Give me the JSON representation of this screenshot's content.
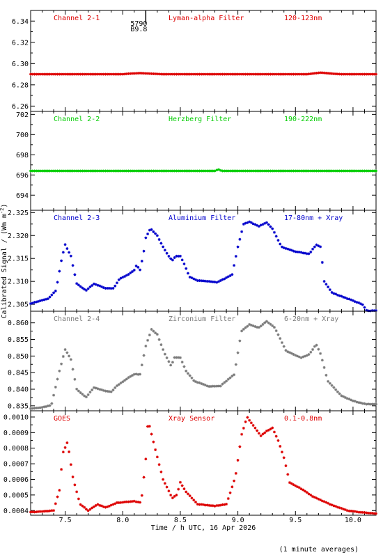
{
  "figure": {
    "ylabel": "Calibrated Signal / (Wm m",
    "ylabel_sup": "-2",
    "ylabel_close": ")",
    "xlabel": "Time / h UTC, 16 Apr 2026",
    "footnote": "(1 minute averages)",
    "marker_text_1": "5790",
    "marker_text_2": "B9.8",
    "marker_time": 8.2,
    "xlim": [
      7.2,
      10.2
    ],
    "xticks": [
      7.5,
      8.0,
      8.5,
      9.0,
      9.5,
      10.0
    ],
    "xtick_labels": [
      "7.5",
      "8.0",
      "8.5",
      "9.0",
      "9.5",
      "10.0"
    ]
  },
  "chart_data": [
    {
      "type": "scatter",
      "channel": "Channel 2-1",
      "filter": "Lyman-alpha Filter",
      "band": "120-123nm",
      "color": "#dd0000",
      "ylim": [
        6.255,
        6.35
      ],
      "yticks": [
        6.26,
        6.28,
        6.3,
        6.32,
        6.34
      ],
      "ytick_labels": [
        "6.26",
        "6.28",
        "6.30",
        "6.32",
        "6.34"
      ],
      "knots": [
        [
          7.2,
          6.29
        ],
        [
          8.0,
          6.29
        ],
        [
          8.05,
          6.2905
        ],
        [
          8.15,
          6.291
        ],
        [
          8.25,
          6.2905
        ],
        [
          8.35,
          6.29
        ],
        [
          9.6,
          6.29
        ],
        [
          9.72,
          6.2915
        ],
        [
          9.82,
          6.2905
        ],
        [
          9.9,
          6.29
        ],
        [
          10.2,
          6.29
        ]
      ]
    },
    {
      "type": "scatter",
      "channel": "Channel 2-2",
      "filter": "Herzberg Filter",
      "band": "190-222nm",
      "color": "#00cc00",
      "ylim": [
        692.5,
        702.3
      ],
      "yticks": [
        694,
        696,
        698,
        700,
        702
      ],
      "ytick_labels": [
        "694",
        "696",
        "698",
        "700",
        "702"
      ],
      "knots": [
        [
          7.2,
          696.4
        ],
        [
          8.8,
          696.4
        ],
        [
          8.83,
          696.55
        ],
        [
          8.86,
          696.4
        ],
        [
          10.2,
          696.4
        ]
      ]
    },
    {
      "type": "scatter",
      "channel": "Channel 2-3",
      "filter": "Aluminium Filter",
      "band": "17-80nm + Xray",
      "color": "#0000cc",
      "ylim": [
        2.3035,
        2.3255
      ],
      "yticks": [
        2.305,
        2.31,
        2.315,
        2.32,
        2.325
      ],
      "ytick_labels": [
        "2.305",
        "2.310",
        "2.315",
        "2.320",
        "2.325"
      ],
      "knots": [
        [
          7.2,
          2.3052
        ],
        [
          7.35,
          2.3062
        ],
        [
          7.42,
          2.308
        ],
        [
          7.47,
          2.315
        ],
        [
          7.5,
          2.318
        ],
        [
          7.55,
          2.3155
        ],
        [
          7.6,
          2.3095
        ],
        [
          7.68,
          2.308
        ],
        [
          7.75,
          2.3095
        ],
        [
          7.85,
          2.3085
        ],
        [
          7.92,
          2.3085
        ],
        [
          7.97,
          2.3105
        ],
        [
          8.05,
          2.3115
        ],
        [
          8.1,
          2.3125
        ],
        [
          8.12,
          2.3135
        ],
        [
          8.15,
          2.3125
        ],
        [
          8.18,
          2.316
        ],
        [
          8.2,
          2.3195
        ],
        [
          8.24,
          2.3215
        ],
        [
          8.3,
          2.32
        ],
        [
          8.35,
          2.3175
        ],
        [
          8.4,
          2.3155
        ],
        [
          8.43,
          2.3145
        ],
        [
          8.46,
          2.3155
        ],
        [
          8.5,
          2.3155
        ],
        [
          8.53,
          2.314
        ],
        [
          8.58,
          2.311
        ],
        [
          8.65,
          2.3102
        ],
        [
          8.75,
          2.31
        ],
        [
          8.82,
          2.3098
        ],
        [
          8.9,
          2.3108
        ],
        [
          8.95,
          2.3115
        ],
        [
          9.0,
          2.3175
        ],
        [
          9.05,
          2.3225
        ],
        [
          9.1,
          2.323
        ],
        [
          9.18,
          2.322
        ],
        [
          9.25,
          2.3228
        ],
        [
          9.3,
          2.3215
        ],
        [
          9.38,
          2.3175
        ],
        [
          9.5,
          2.3165
        ],
        [
          9.62,
          2.316
        ],
        [
          9.68,
          2.318
        ],
        [
          9.72,
          2.3175
        ],
        [
          9.75,
          2.31
        ],
        [
          9.82,
          2.3075
        ],
        [
          10.0,
          2.3058
        ],
        [
          10.08,
          2.305
        ],
        [
          10.12,
          2.3036
        ],
        [
          10.2,
          2.3036
        ]
      ]
    },
    {
      "type": "scatter",
      "channel": "Channel 2-4",
      "filter": "Zirconium Filter",
      "band": "6-20nm + Xray",
      "color": "#7a7a7a",
      "ylim": [
        0.8335,
        0.8635
      ],
      "yticks": [
        0.835,
        0.84,
        0.845,
        0.85,
        0.855,
        0.86
      ],
      "ytick_labels": [
        "0.835",
        "0.840",
        "0.845",
        "0.850",
        "0.855",
        "0.860"
      ],
      "knots": [
        [
          7.2,
          0.8342
        ],
        [
          7.3,
          0.8345
        ],
        [
          7.38,
          0.8352
        ],
        [
          7.45,
          0.8455
        ],
        [
          7.5,
          0.852
        ],
        [
          7.55,
          0.849
        ],
        [
          7.6,
          0.84
        ],
        [
          7.68,
          0.8375
        ],
        [
          7.75,
          0.8405
        ],
        [
          7.85,
          0.8395
        ],
        [
          7.9,
          0.8392
        ],
        [
          7.95,
          0.841
        ],
        [
          8.05,
          0.8435
        ],
        [
          8.1,
          0.8445
        ],
        [
          8.15,
          0.8445
        ],
        [
          8.2,
          0.853
        ],
        [
          8.25,
          0.858
        ],
        [
          8.3,
          0.8565
        ],
        [
          8.36,
          0.851
        ],
        [
          8.42,
          0.847
        ],
        [
          8.45,
          0.8495
        ],
        [
          8.5,
          0.8495
        ],
        [
          8.55,
          0.8455
        ],
        [
          8.62,
          0.8425
        ],
        [
          8.75,
          0.8408
        ],
        [
          8.85,
          0.841
        ],
        [
          8.9,
          0.8425
        ],
        [
          8.97,
          0.8445
        ],
        [
          9.03,
          0.8575
        ],
        [
          9.1,
          0.8595
        ],
        [
          9.18,
          0.8585
        ],
        [
          9.25,
          0.8605
        ],
        [
          9.32,
          0.8585
        ],
        [
          9.42,
          0.8515
        ],
        [
          9.55,
          0.8495
        ],
        [
          9.62,
          0.8505
        ],
        [
          9.68,
          0.8535
        ],
        [
          9.72,
          0.8505
        ],
        [
          9.78,
          0.8425
        ],
        [
          9.9,
          0.838
        ],
        [
          10.0,
          0.8365
        ],
        [
          10.05,
          0.836
        ],
        [
          10.12,
          0.8355
        ],
        [
          10.2,
          0.8355
        ]
      ]
    },
    {
      "type": "scatter",
      "channel": "GOES",
      "filter": "Xray Sensor",
      "band": "0.1-0.8nm",
      "color": "#dd0000",
      "ylim": [
        0.00037,
        0.00104
      ],
      "yticks": [
        0.0004,
        0.0005,
        0.0006,
        0.0007,
        0.0008,
        0.0009,
        0.001
      ],
      "ytick_labels": [
        "0.0004",
        "0.0005",
        "0.0006",
        "0.0007",
        "0.0008",
        "0.0009",
        "0.0010"
      ],
      "knots": [
        [
          7.2,
          0.00039
        ],
        [
          7.4,
          0.0004
        ],
        [
          7.45,
          0.00053
        ],
        [
          7.48,
          0.00077
        ],
        [
          7.52,
          0.00084
        ],
        [
          7.57,
          0.0006
        ],
        [
          7.63,
          0.00044
        ],
        [
          7.7,
          0.0004
        ],
        [
          7.78,
          0.00044
        ],
        [
          7.85,
          0.00042
        ],
        [
          7.95,
          0.00045
        ],
        [
          8.1,
          0.00046
        ],
        [
          8.16,
          0.00045
        ],
        [
          8.2,
          0.00073
        ],
        [
          8.22,
          0.00098
        ],
        [
          8.28,
          0.0008
        ],
        [
          8.35,
          0.0006
        ],
        [
          8.43,
          0.00048
        ],
        [
          8.47,
          0.0005
        ],
        [
          8.5,
          0.00058
        ],
        [
          8.55,
          0.00052
        ],
        [
          8.65,
          0.00044
        ],
        [
          8.8,
          0.00043
        ],
        [
          8.9,
          0.00044
        ],
        [
          8.98,
          0.00062
        ],
        [
          9.03,
          0.00088
        ],
        [
          9.08,
          0.001
        ],
        [
          9.15,
          0.00093
        ],
        [
          9.2,
          0.00088
        ],
        [
          9.25,
          0.00091
        ],
        [
          9.3,
          0.00093
        ],
        [
          9.35,
          0.00085
        ],
        [
          9.4,
          0.00074
        ],
        [
          9.45,
          0.00058
        ],
        [
          9.55,
          0.00054
        ],
        [
          9.65,
          0.00049
        ],
        [
          9.8,
          0.00044
        ],
        [
          9.95,
          0.0004
        ],
        [
          10.05,
          0.00039
        ],
        [
          10.2,
          0.00038
        ]
      ]
    }
  ]
}
